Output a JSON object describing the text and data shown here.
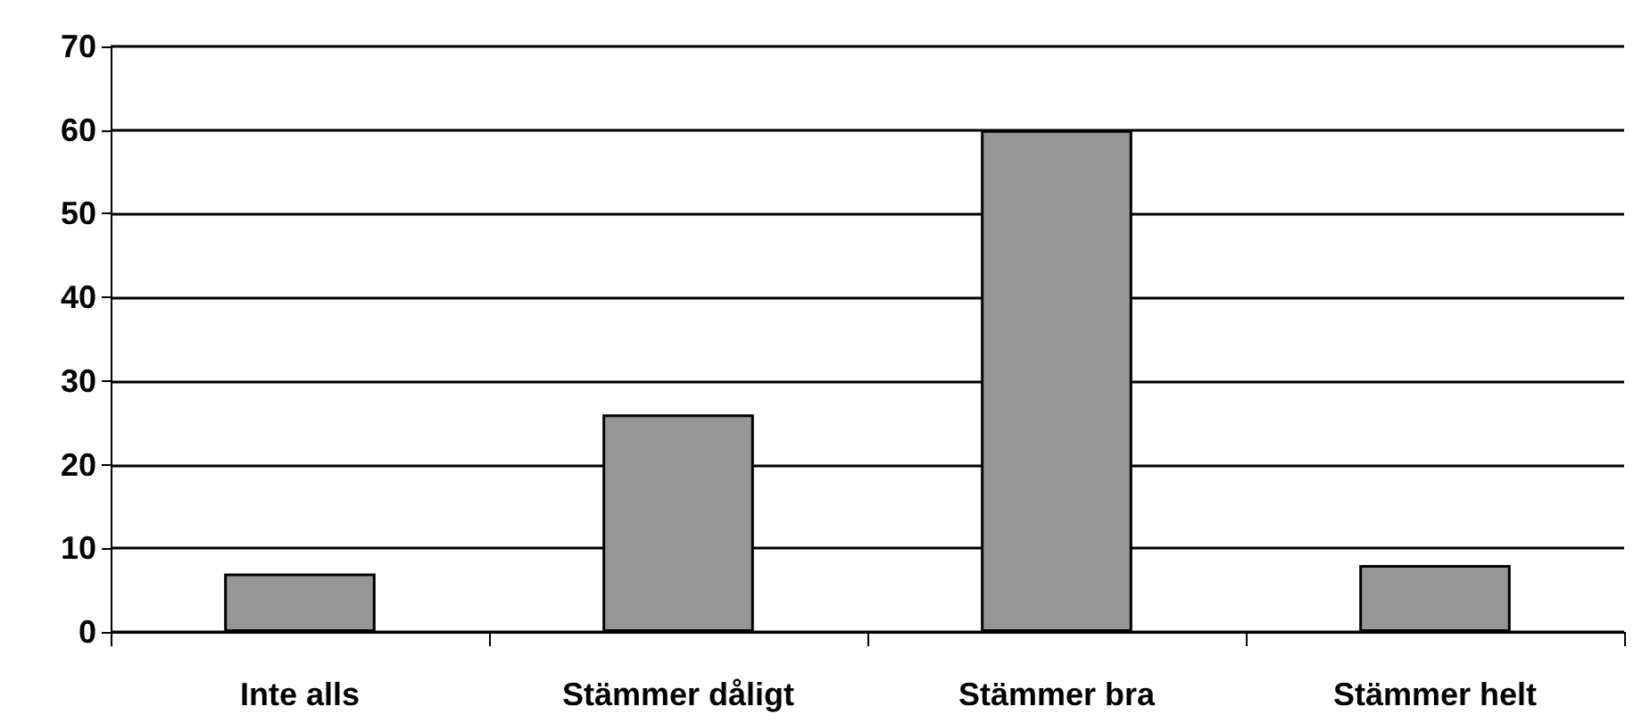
{
  "chart_data": {
    "type": "bar",
    "categories": [
      "Inte alls",
      "Stämmer dåligt",
      "Stämmer bra",
      "Stämmer helt"
    ],
    "values": [
      7,
      26,
      60,
      8
    ],
    "color": "#969696",
    "ylim": [
      0,
      70
    ],
    "yticks": [
      0,
      10,
      20,
      30,
      40,
      50,
      60,
      70
    ],
    "grid": "y"
  }
}
